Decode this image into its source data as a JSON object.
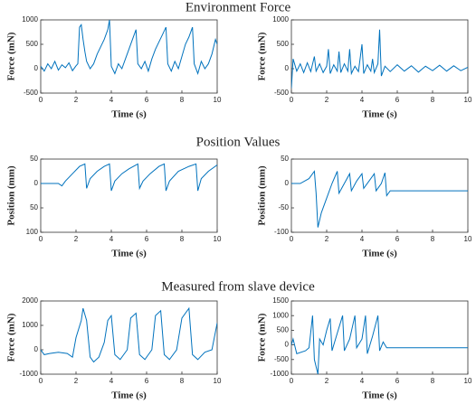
{
  "section_titles": [
    "Environment Force",
    "Position Values",
    "Measured from slave device"
  ],
  "chart_data": [
    {
      "type": "line",
      "xlabel": "Time (s)",
      "ylabel": "Force (mN)",
      "color": "#0072bd",
      "xlim": [
        0,
        10
      ],
      "xticks": [
        0,
        2,
        4,
        6,
        8,
        10
      ],
      "ylim": [
        -500,
        1000
      ],
      "yticks": [
        -500,
        0,
        500,
        1000
      ],
      "x": [
        0,
        0.2,
        0.4,
        0.6,
        0.8,
        1.0,
        1.2,
        1.4,
        1.6,
        1.8,
        2.0,
        2.1,
        2.2,
        2.3,
        2.4,
        2.5,
        2.6,
        2.8,
        3.0,
        3.2,
        3.4,
        3.6,
        3.8,
        3.9,
        4.0,
        4.2,
        4.4,
        4.6,
        4.8,
        5.0,
        5.2,
        5.4,
        5.5,
        5.7,
        5.9,
        6.1,
        6.3,
        6.5,
        6.7,
        6.9,
        7.1,
        7.2,
        7.4,
        7.6,
        7.8,
        8.0,
        8.2,
        8.4,
        8.6,
        8.7,
        8.9,
        9.1,
        9.3,
        9.5,
        9.7,
        9.9,
        10
      ],
      "values": [
        50,
        -50,
        100,
        0,
        150,
        -30,
        80,
        20,
        120,
        -40,
        60,
        100,
        850,
        900,
        600,
        350,
        150,
        0,
        100,
        300,
        450,
        600,
        800,
        1000,
        50,
        -100,
        100,
        0,
        200,
        400,
        600,
        800,
        100,
        0,
        150,
        -50,
        200,
        400,
        550,
        700,
        850,
        100,
        -50,
        150,
        0,
        250,
        500,
        650,
        850,
        100,
        -100,
        150,
        0,
        100,
        300,
        600,
        500
      ]
    },
    {
      "type": "line",
      "xlabel": "Time (s)",
      "ylabel": "Force (mN)",
      "color": "#0072bd",
      "xlim": [
        0,
        10
      ],
      "xticks": [
        0,
        2,
        4,
        6,
        8,
        10
      ],
      "ylim": [
        -500,
        1000
      ],
      "yticks": [
        -500,
        0,
        500,
        1000
      ],
      "x": [
        0,
        0.1,
        0.3,
        0.5,
        0.7,
        0.9,
        1.1,
        1.3,
        1.4,
        1.6,
        1.8,
        2.0,
        2.1,
        2.2,
        2.4,
        2.6,
        2.7,
        2.8,
        3.0,
        3.2,
        3.3,
        3.4,
        3.6,
        3.8,
        4.0,
        4.1,
        4.3,
        4.5,
        4.6,
        4.7,
        4.9,
        5.0,
        5.1,
        5.3,
        5.6,
        6.0,
        6.4,
        6.8,
        7.2,
        7.6,
        8.0,
        8.4,
        8.8,
        9.2,
        9.6,
        10
      ],
      "values": [
        -400,
        200,
        -50,
        100,
        -80,
        120,
        -60,
        250,
        -50,
        100,
        -80,
        50,
        400,
        -100,
        80,
        -50,
        350,
        -80,
        100,
        -50,
        400,
        -100,
        50,
        -60,
        500,
        -100,
        80,
        -50,
        200,
        -80,
        100,
        800,
        -150,
        50,
        -60,
        80,
        -50,
        60,
        -70,
        50,
        -40,
        70,
        -50,
        60,
        -40,
        30
      ]
    },
    {
      "type": "line",
      "xlabel": "Time (s)",
      "ylabel": "Position (mm)",
      "color": "#0072bd",
      "xlim": [
        0,
        10
      ],
      "xticks": [
        0,
        2,
        4,
        6,
        8,
        10
      ],
      "ylim": [
        -100,
        50
      ],
      "yticks": [
        {
          "value": -100,
          "label": "100"
        },
        {
          "value": -50,
          "label": "50"
        },
        0,
        50
      ],
      "x": [
        0,
        1.0,
        1.2,
        1.4,
        1.8,
        2.2,
        2.5,
        2.6,
        2.8,
        3.2,
        3.6,
        3.9,
        4.0,
        4.2,
        4.6,
        5.0,
        5.5,
        5.6,
        5.8,
        6.2,
        6.7,
        7.0,
        7.1,
        7.3,
        7.8,
        8.4,
        8.8,
        8.9,
        9.1,
        9.5,
        10
      ],
      "values": [
        0,
        0,
        -5,
        5,
        20,
        35,
        40,
        -10,
        10,
        25,
        35,
        40,
        -15,
        5,
        20,
        30,
        40,
        -10,
        5,
        20,
        35,
        40,
        -15,
        5,
        25,
        35,
        40,
        -15,
        10,
        25,
        38
      ]
    },
    {
      "type": "line",
      "xlabel": "Time (s)",
      "ylabel": "Position (mm)",
      "color": "#0072bd",
      "xlim": [
        0,
        10
      ],
      "xticks": [
        0,
        2,
        4,
        6,
        8,
        10
      ],
      "ylim": [
        -100,
        50
      ],
      "yticks": [
        -100,
        -50,
        0,
        50
      ],
      "x": [
        0,
        0.5,
        1.0,
        1.3,
        1.4,
        1.5,
        1.7,
        2.0,
        2.3,
        2.6,
        2.7,
        3.0,
        3.3,
        3.4,
        3.7,
        4.0,
        4.1,
        4.4,
        4.7,
        4.8,
        5.1,
        5.3,
        5.4,
        5.6,
        6,
        8,
        10
      ],
      "values": [
        0,
        0,
        10,
        25,
        -20,
        -90,
        -60,
        -30,
        0,
        25,
        -20,
        0,
        20,
        -15,
        5,
        20,
        -10,
        5,
        20,
        -15,
        0,
        22,
        -25,
        -15,
        -15,
        -15,
        -15
      ]
    },
    {
      "type": "line",
      "xlabel": "Time (s)",
      "ylabel": "Force (mN)",
      "color": "#0072bd",
      "xlim": [
        0,
        10
      ],
      "xticks": [
        0,
        2,
        4,
        6,
        8,
        10
      ],
      "ylim": [
        -1000,
        2000
      ],
      "yticks": [
        -1000,
        0,
        1000,
        2000
      ],
      "x": [
        0,
        0.2,
        0.5,
        1.0,
        1.5,
        1.8,
        2.0,
        2.3,
        2.4,
        2.6,
        2.8,
        3.0,
        3.3,
        3.6,
        3.8,
        4.0,
        4.2,
        4.5,
        4.9,
        5.1,
        5.4,
        5.6,
        5.9,
        6.3,
        6.5,
        6.8,
        7.0,
        7.3,
        7.7,
        8.0,
        8.4,
        8.6,
        8.9,
        9.3,
        9.7,
        10
      ],
      "values": [
        0,
        -200,
        -150,
        -100,
        -150,
        -300,
        500,
        1200,
        1700,
        1200,
        -300,
        -500,
        -300,
        300,
        1200,
        1400,
        -200,
        -400,
        0,
        1300,
        1500,
        -200,
        -400,
        0,
        1400,
        1600,
        -200,
        -400,
        0,
        1300,
        1700,
        -200,
        -400,
        -100,
        0,
        1100
      ]
    },
    {
      "type": "line",
      "xlabel": "Time (s)",
      "ylabel": "Force (mN)",
      "color": "#0072bd",
      "xlim": [
        0,
        10
      ],
      "xticks": [
        0,
        2,
        4,
        6,
        8,
        10
      ],
      "ylim": [
        -1000,
        1500
      ],
      "yticks": [
        -1000,
        -500,
        0,
        500,
        1000,
        1500
      ],
      "x": [
        0,
        0.1,
        0.3,
        0.8,
        1.0,
        1.2,
        1.3,
        1.5,
        1.6,
        1.8,
        2.0,
        2.2,
        2.3,
        2.6,
        2.9,
        3.0,
        3.3,
        3.6,
        3.7,
        4.0,
        4.2,
        4.3,
        4.6,
        4.9,
        5.0,
        5.2,
        5.4,
        5.6,
        6,
        8,
        10
      ],
      "values": [
        0,
        200,
        -300,
        -200,
        -100,
        1000,
        -500,
        -1000,
        200,
        0,
        500,
        900,
        -200,
        400,
        1000,
        -200,
        200,
        1000,
        -100,
        200,
        1000,
        -300,
        300,
        1000,
        -200,
        100,
        -100,
        -100,
        -100,
        -100,
        -100
      ]
    }
  ]
}
